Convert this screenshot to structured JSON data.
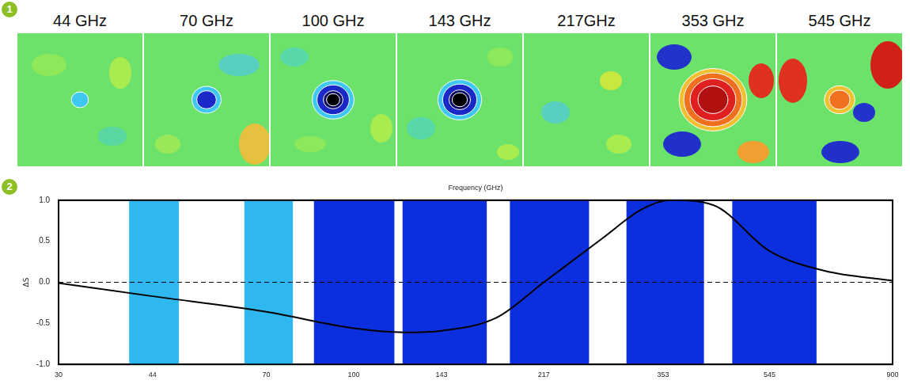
{
  "maps_panel": {
    "panel_label": "1",
    "maps": [
      {
        "title": "44 GHz",
        "frequency": 44
      },
      {
        "title": "70 GHz",
        "frequency": 70
      },
      {
        "title": "100 GHz",
        "frequency": 100
      },
      {
        "title": "143 GHz",
        "frequency": 143
      },
      {
        "title": "217GHz",
        "frequency": 217
      },
      {
        "title": "353 GHz",
        "frequency": 353
      },
      {
        "title": "545 GHz",
        "frequency": 545
      }
    ]
  },
  "chart_data": {
    "type": "line",
    "panel_label": "2",
    "x_label": "Frequency (GHz)",
    "y_label": "ΔS",
    "log": "x",
    "grid": false,
    "xlim": [
      30,
      900
    ],
    "xticks": [
      30,
      44,
      70,
      100,
      143,
      217,
      353,
      545,
      900
    ],
    "ylim": [
      -1,
      1
    ],
    "yticks": [
      {
        "value": -1,
        "label": "-1.0"
      },
      {
        "value": -0.5,
        "label": "-0.5"
      },
      {
        "value": 0,
        "label": "0.0"
      },
      {
        "value": 0.5,
        "label": "0.5"
      },
      {
        "value": 1,
        "label": "1.0"
      }
    ],
    "series": [
      {
        "color": "#000000",
        "line_style": "solid",
        "x": [
          30,
          44,
          70,
          100,
          123,
          143,
          179,
          217,
          275,
          324,
          363,
          433,
          545,
          682,
          900
        ],
        "values": [
          -0.01,
          -0.17,
          -0.36,
          -0.56,
          -0.61,
          -0.59,
          -0.43,
          0.0,
          0.53,
          0.89,
          1.0,
          0.94,
          0.38,
          0.14,
          0.02
        ]
      },
      {
        "color": "#000000",
        "line_style": "dashed",
        "x": [
          30,
          900
        ],
        "values": [
          0,
          0
        ]
      }
    ],
    "bands": [
      {
        "low": 40,
        "high": 49,
        "color": "#2fb8ef"
      },
      {
        "low": 64,
        "high": 78,
        "color": "#2fb8ef"
      },
      {
        "low": 85,
        "high": 118,
        "color": "#0b2fdc"
      },
      {
        "low": 122,
        "high": 172,
        "color": "#0b2fdc"
      },
      {
        "low": 189,
        "high": 261,
        "color": "#0b2fdc"
      },
      {
        "low": 304,
        "high": 417,
        "color": "#0b2fdc"
      },
      {
        "low": 468,
        "high": 660,
        "color": "#0b2fdc"
      }
    ]
  }
}
